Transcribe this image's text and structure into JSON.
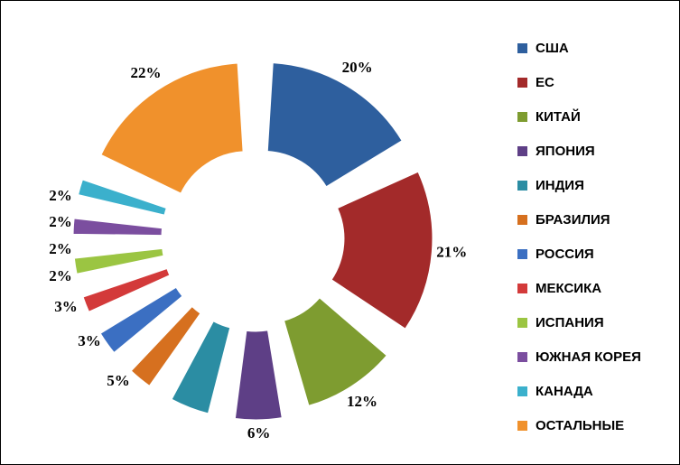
{
  "chart_data": {
    "type": "pie",
    "variant": "exploded-doughnut",
    "categories": [
      "США",
      "ЕС",
      "КИТАЙ",
      "ЯПОНИЯ",
      "ИНДИЯ",
      "БРАЗИЛИЯ",
      "РОССИЯ",
      "МЕКСИКА",
      "ИСПАНИЯ",
      "ЮЖНАЯ КОРЕЯ",
      "КАНАДА",
      "ОСТАЛЬНЫЕ"
    ],
    "values": [
      20,
      21,
      12,
      6,
      5,
      3,
      3,
      2,
      2,
      2,
      2,
      22
    ],
    "labels": [
      "20%",
      "21%",
      "12%",
      "6%",
      "5%",
      "3%",
      "3%",
      "2%",
      "2%",
      "2%",
      "2%",
      "22%"
    ],
    "colors": [
      "#2E5F9E",
      "#A32A2A",
      "#7E9C30",
      "#5E3F86",
      "#2B8DA3",
      "#D6701F",
      "#3B6FC2",
      "#D33A3A",
      "#9BC542",
      "#7B4E9F",
      "#3BB0CC",
      "#F0912C"
    ],
    "legend_position": "right"
  }
}
